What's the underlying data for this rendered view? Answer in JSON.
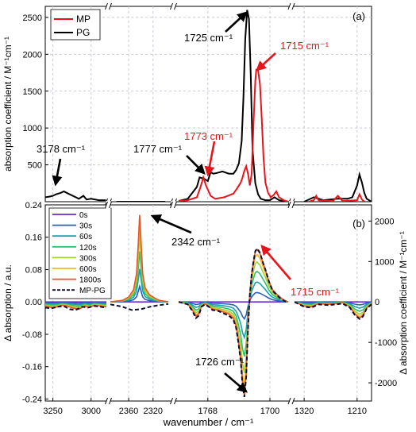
{
  "chart_data": [
    {
      "type": "line",
      "panel_label": "(a)",
      "ylabel": "absorption coefficient / M⁻¹cm⁻¹",
      "ylim": [
        0,
        2650
      ],
      "yticks": [
        "500",
        "1000",
        "1500",
        "2000",
        "2500"
      ],
      "ytick_values": [
        500,
        1000,
        1500,
        2000,
        2500
      ],
      "legend": {
        "placement": "top-left",
        "entries": [
          "MP",
          "PG"
        ]
      },
      "series": [
        {
          "name": "MP",
          "color": "#e8141c",
          "x": [
            1800,
            1790,
            1780,
            1776,
            1773,
            1770,
            1765,
            1760,
            1750,
            1740,
            1736,
            1732,
            1730,
            1728,
            1726,
            1724,
            1722,
            1720,
            1718,
            1716,
            1715,
            1713,
            1711,
            1709,
            1707,
            1705,
            1702,
            1699,
            1696,
            1693,
            1690,
            1685,
            1680,
            1310,
            1300,
            1295,
            1290,
            1260,
            1250,
            1240,
            1210,
            1205,
            1200,
            1195
          ],
          "y": [
            10,
            20,
            60,
            200,
            330,
            220,
            80,
            40,
            60,
            110,
            180,
            260,
            330,
            420,
            480,
            380,
            220,
            380,
            1060,
            1640,
            1790,
            1780,
            1600,
            1150,
            600,
            260,
            120,
            60,
            90,
            140,
            60,
            20,
            0,
            0,
            20,
            80,
            20,
            10,
            80,
            10,
            20,
            100,
            30,
            0
          ]
        },
        {
          "name": "PG",
          "color": "#000000",
          "x": [
            3300,
            3270,
            3250,
            3230,
            3200,
            3178,
            3150,
            3100,
            3080,
            3050,
            3030,
            3000,
            2950,
            2900,
            2380,
            2300,
            1800,
            1790,
            1780,
            1777,
            1772,
            1768,
            1765,
            1762,
            1758,
            1752,
            1745,
            1740,
            1737,
            1734,
            1731,
            1729,
            1727,
            1725,
            1723,
            1721,
            1719,
            1716,
            1713,
            1710,
            1705,
            1700,
            1695,
            1690,
            1685,
            1680,
            1320,
            1300,
            1280,
            1250,
            1230,
            1220,
            1210,
            1205,
            1200,
            1195,
            1190,
            1180
          ],
          "y": [
            60,
            70,
            80,
            100,
            120,
            140,
            110,
            60,
            40,
            80,
            30,
            40,
            20,
            20,
            0,
            0,
            10,
            40,
            200,
            330,
            310,
            280,
            400,
            380,
            390,
            410,
            380,
            380,
            430,
            520,
            820,
            1400,
            2200,
            2600,
            2480,
            1700,
            700,
            250,
            100,
            40,
            20,
            20,
            60,
            20,
            10,
            0,
            0,
            60,
            20,
            40,
            40,
            60,
            220,
            370,
            260,
            120,
            40,
            0
          ]
        }
      ],
      "annotations": [
        {
          "text": "3178 cm⁻¹",
          "color": "#000000"
        },
        {
          "text": "1777 cm⁻¹",
          "color": "#000000"
        },
        {
          "text": "1773 cm⁻¹",
          "color": "#e8141c"
        },
        {
          "text": "1725 cm⁻¹",
          "color": "#000000"
        },
        {
          "text": "1715 cm⁻¹",
          "color": "#e8141c"
        }
      ]
    },
    {
      "type": "line",
      "panel_label": "(b)",
      "xlabel": "wavenumber / cm⁻¹",
      "ylabel": "Δ absorption / a.u.",
      "y2label": "Δ absorption coefficient / M⁻¹cm⁻¹",
      "ylim": [
        -0.245,
        0.24
      ],
      "yticks": [
        "0.24",
        "0.16",
        "0.08",
        "0.00",
        "-0.08",
        "-0.16",
        "-0.24"
      ],
      "ytick_values": [
        0.24,
        0.16,
        0.08,
        0.0,
        -0.08,
        -0.16,
        -0.24
      ],
      "y2ticks": [
        "2000",
        "1000",
        "0",
        "-1000",
        "-2000"
      ],
      "y2tick_values": [
        2000,
        1000,
        0,
        -1000,
        -2000
      ],
      "xtick_segments": [
        {
          "ticks": [
            "3250",
            "3000"
          ]
        },
        {
          "ticks": [
            "2360",
            "2320"
          ]
        },
        {
          "ticks": [
            "1768",
            "1700"
          ]
        },
        {
          "ticks": [
            "1320",
            "1210"
          ]
        }
      ],
      "legend": {
        "placement": "top-left",
        "entries": [
          "0s",
          "30s",
          "60s",
          "120s",
          "300s",
          "600s",
          "1800s",
          "MP-PG"
        ]
      },
      "series": [
        {
          "name": "0s",
          "color": "#6b2ad0",
          "scale": 0.0
        },
        {
          "name": "30s",
          "color": "#2a5fb8",
          "scale": 0.18
        },
        {
          "name": "60s",
          "color": "#1aa0b0",
          "scale": 0.38
        },
        {
          "name": "120s",
          "color": "#2fbf6a",
          "scale": 0.58
        },
        {
          "name": "300s",
          "color": "#9fd23c",
          "scale": 0.76
        },
        {
          "name": "600s",
          "color": "#f2b531",
          "scale": 0.9
        },
        {
          "name": "1800s",
          "color": "#e4562a",
          "scale": 1.0
        },
        {
          "name": "MP-PG",
          "color": "#0d0d30",
          "dashed": true
        }
      ],
      "final_spectrum": {
        "x": [
          3300,
          3280,
          3250,
          3220,
          3190,
          3160,
          3120,
          3080,
          3040,
          3010,
          2980,
          2940,
          2900,
          2390,
          2370,
          2360,
          2352,
          2347,
          2344,
          2342,
          2340,
          2337,
          2333,
          2326,
          2318,
          2310,
          2295,
          1800,
          1790,
          1785,
          1781,
          1778,
          1775,
          1771,
          1767,
          1763,
          1757,
          1751,
          1745,
          1740,
          1737,
          1735,
          1732,
          1730,
          1728,
          1726,
          1724,
          1722,
          1720,
          1718,
          1716,
          1714,
          1711,
          1708,
          1705,
          1701,
          1697,
          1693,
          1688,
          1684,
          1680,
          1340,
          1320,
          1305,
          1290,
          1270,
          1255,
          1240,
          1225,
          1215,
          1205,
          1198,
          1190,
          1180
        ],
        "y": [
          -0.01,
          -0.012,
          -0.014,
          -0.012,
          -0.008,
          -0.01,
          -0.015,
          -0.018,
          -0.01,
          -0.014,
          -0.008,
          -0.01,
          -0.012,
          0.0,
          0.004,
          0.012,
          0.03,
          0.07,
          0.15,
          0.215,
          0.16,
          0.07,
          0.035,
          0.018,
          0.01,
          0.004,
          0.0,
          0.0,
          -0.005,
          -0.02,
          -0.035,
          -0.03,
          -0.01,
          -0.005,
          -0.01,
          -0.018,
          -0.02,
          -0.025,
          -0.03,
          -0.04,
          -0.06,
          -0.09,
          -0.14,
          -0.2,
          -0.232,
          -0.18,
          -0.06,
          0.02,
          0.07,
          0.1,
          0.125,
          0.13,
          0.12,
          0.1,
          0.08,
          0.05,
          0.03,
          0.02,
          0.01,
          0.004,
          0.0,
          0.0,
          -0.01,
          -0.012,
          -0.004,
          -0.006,
          -0.004,
          -0.002,
          -0.012,
          -0.03,
          -0.04,
          -0.034,
          -0.015,
          -0.004
        ]
      },
      "mp_pg_spectrum": {
        "x": [
          3300,
          3260,
          3220,
          3180,
          3140,
          3100,
          3060,
          3020,
          2980,
          2940,
          2900,
          2390,
          2370,
          2355,
          2340,
          2325,
          2310,
          2295,
          1800,
          1790,
          1785,
          1781,
          1778,
          1775,
          1771,
          1767,
          1763,
          1757,
          1751,
          1745,
          1740,
          1737,
          1735,
          1732,
          1730,
          1728,
          1726,
          1724,
          1722,
          1720,
          1718,
          1716,
          1714,
          1711,
          1708,
          1705,
          1701,
          1697,
          1693,
          1688,
          1684,
          1680,
          1340,
          1320,
          1305,
          1290,
          1270,
          1255,
          1240,
          1225,
          1215,
          1205,
          1198,
          1190,
          1180
        ],
        "y": [
          -0.014,
          -0.016,
          -0.012,
          -0.01,
          -0.018,
          -0.02,
          -0.012,
          -0.014,
          -0.01,
          -0.012,
          -0.014,
          -0.006,
          -0.012,
          -0.02,
          -0.018,
          -0.012,
          -0.008,
          -0.005,
          0.0,
          -0.006,
          -0.022,
          -0.04,
          -0.034,
          -0.012,
          -0.006,
          -0.012,
          -0.02,
          -0.022,
          -0.028,
          -0.034,
          -0.044,
          -0.064,
          -0.094,
          -0.145,
          -0.205,
          -0.235,
          -0.185,
          -0.065,
          0.018,
          0.068,
          0.1,
          0.126,
          0.132,
          0.122,
          0.1,
          0.08,
          0.05,
          0.028,
          0.018,
          0.008,
          0.002,
          0.0,
          0.0,
          -0.012,
          -0.014,
          -0.006,
          -0.008,
          -0.006,
          -0.004,
          -0.014,
          -0.032,
          -0.042,
          -0.036,
          -0.016,
          -0.006
        ]
      },
      "annotations": [
        {
          "text": "2342 cm⁻¹",
          "color": "#000000"
        },
        {
          "text": "1715 cm⁻¹",
          "color": "#e8141c"
        },
        {
          "text": "1726 cm⁻¹",
          "color": "#000000"
        }
      ]
    }
  ]
}
